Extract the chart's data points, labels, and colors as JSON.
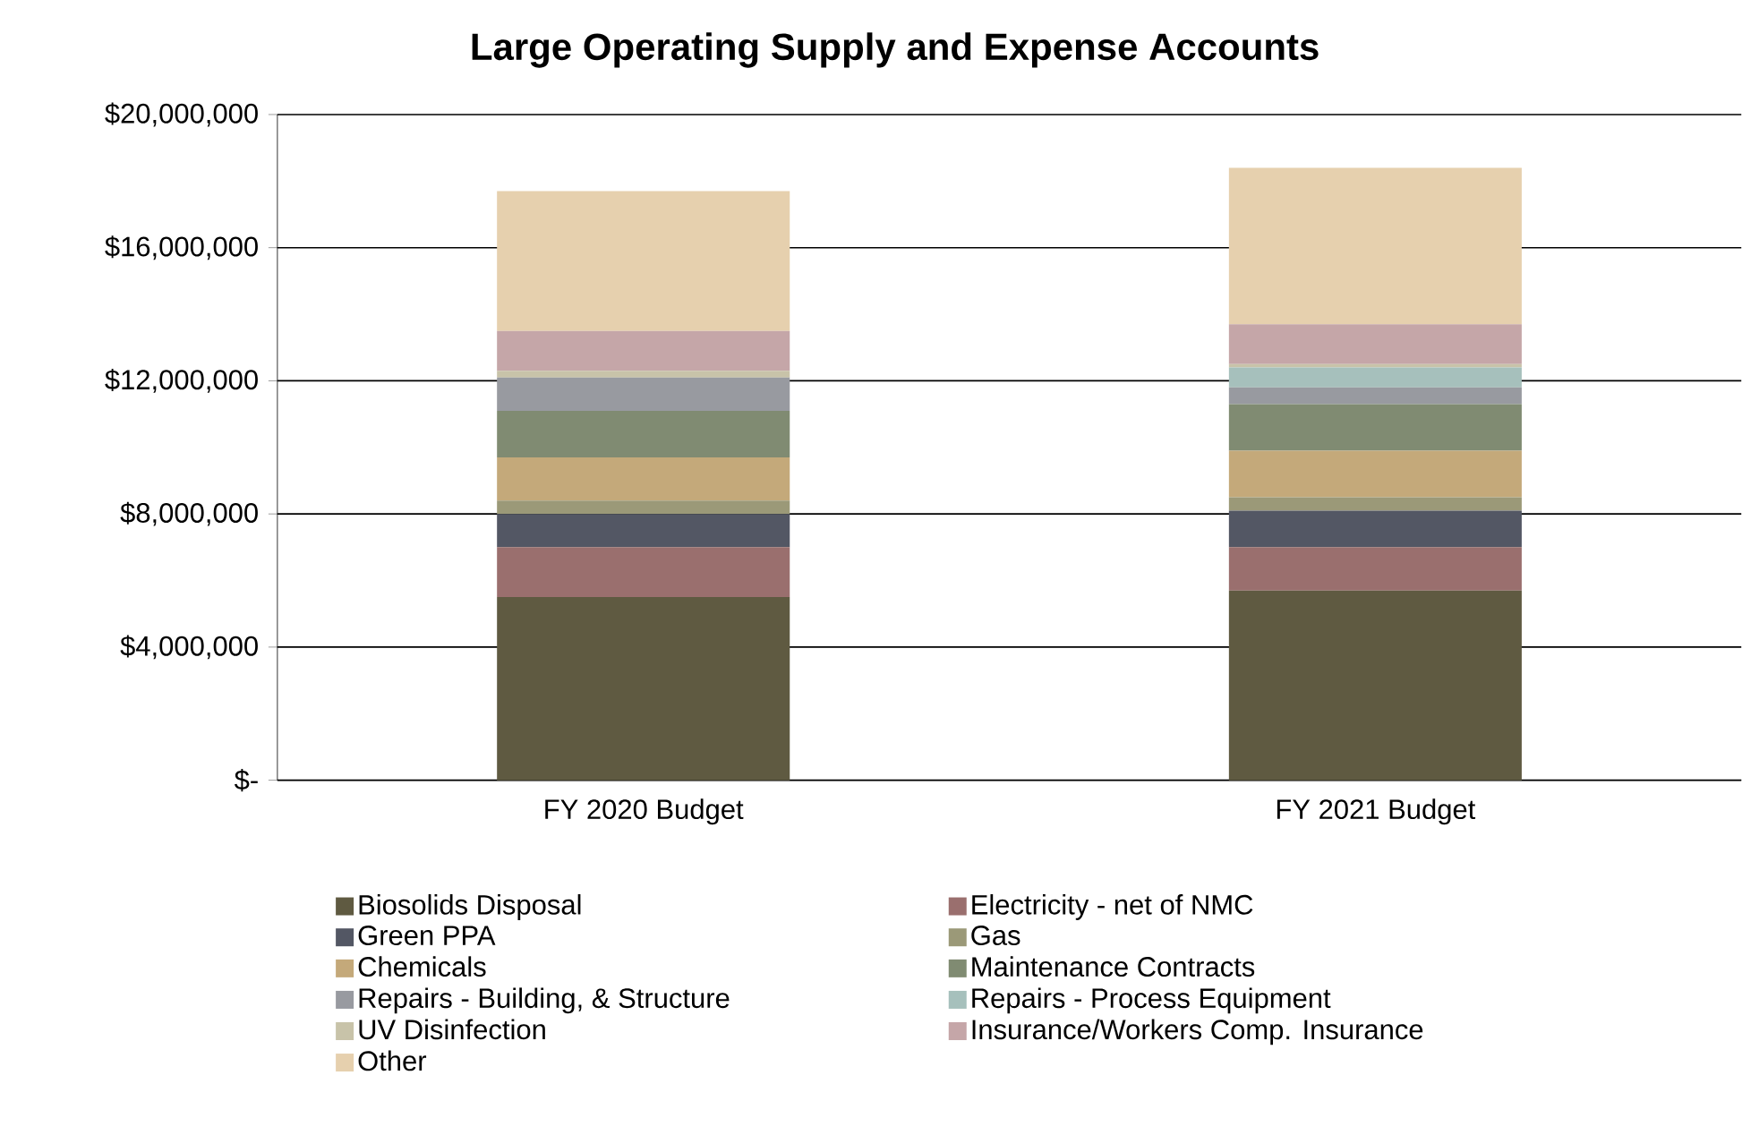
{
  "chart_data": {
    "type": "bar",
    "title": "Large Operating Supply and Expense Accounts",
    "categories": [
      "FY 2020 Budget",
      "FY 2021 Budget"
    ],
    "stacked": true,
    "series": [
      {
        "name": "Biosolids Disposal",
        "color": "#5f5a41",
        "values": [
          5500000,
          5700000
        ]
      },
      {
        "name": "Electricity - net of NMC",
        "color": "#9a6f6e",
        "values": [
          1500000,
          1300000
        ]
      },
      {
        "name": "Green PPA",
        "color": "#535764",
        "values": [
          1000000,
          1100000
        ]
      },
      {
        "name": "Gas",
        "color": "#9b9978",
        "values": [
          400000,
          400000
        ]
      },
      {
        "name": "Chemicals",
        "color": "#c4a97a",
        "values": [
          1300000,
          1400000
        ]
      },
      {
        "name": "Maintenance Contracts",
        "color": "#808b72",
        "values": [
          1400000,
          1400000
        ]
      },
      {
        "name": "Repairs - Building, & Structure",
        "color": "#989aa0",
        "values": [
          1000000,
          500000
        ]
      },
      {
        "name": "Repairs - Process Equipment",
        "color": "#a6c0bc",
        "values": [
          0,
          600000
        ]
      },
      {
        "name": "UV Disinfection",
        "color": "#c8c3a9",
        "values": [
          200000,
          100000
        ]
      },
      {
        "name": "Insurance/Workers Comp. Insurance",
        "color": "#c5a6a8",
        "values": [
          1200000,
          1200000
        ]
      },
      {
        "name": "Other",
        "color": "#e6d0ae",
        "values": [
          4200000,
          4700000
        ]
      }
    ],
    "ylim": [
      0,
      20000000
    ],
    "yticks": [
      {
        "value": 0,
        "label": "$-"
      },
      {
        "value": 4000000,
        "label": "$4,000,000"
      },
      {
        "value": 8000000,
        "label": "$8,000,000"
      },
      {
        "value": 12000000,
        "label": "$12,000,000"
      },
      {
        "value": 16000000,
        "label": "$16,000,000"
      },
      {
        "value": 20000000,
        "label": "$20,000,000"
      }
    ],
    "grid": "y",
    "legend": "bottom"
  }
}
